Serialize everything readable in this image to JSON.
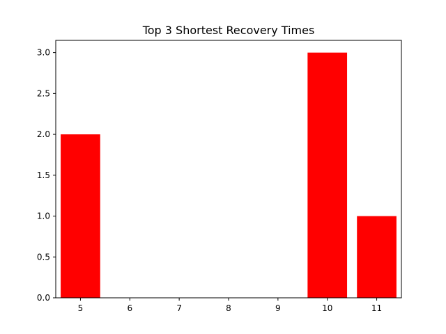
{
  "chart_data": {
    "type": "bar",
    "title": "Top 3 Shortest Recovery Times",
    "xlabel": "",
    "ylabel": "",
    "x_ticks": [
      5,
      6,
      7,
      8,
      9,
      10,
      11
    ],
    "xlim": [
      4.5,
      11.5
    ],
    "ylim": [
      0,
      3.15
    ],
    "y_ticks": [
      "0.0",
      "0.5",
      "1.0",
      "1.5",
      "2.0",
      "2.5",
      "3.0"
    ],
    "bars": [
      {
        "x": 5,
        "value": 2.0
      },
      {
        "x": 10,
        "value": 3.0
      },
      {
        "x": 11,
        "value": 1.0
      }
    ],
    "bar_color": "#ff0000",
    "grid": false
  }
}
